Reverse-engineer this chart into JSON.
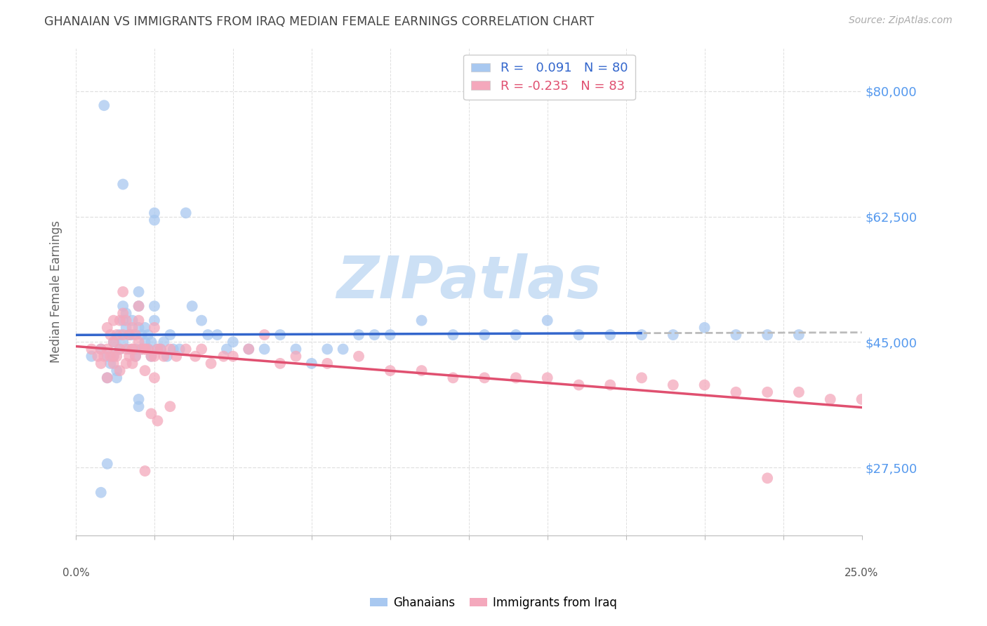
{
  "title": "GHANAIAN VS IMMIGRANTS FROM IRAQ MEDIAN FEMALE EARNINGS CORRELATION CHART",
  "source": "Source: ZipAtlas.com",
  "ylabel": "Median Female Earnings",
  "ytick_labels": [
    "$27,500",
    "$45,000",
    "$62,500",
    "$80,000"
  ],
  "ytick_values": [
    27500,
    45000,
    62500,
    80000
  ],
  "y_min": 18000,
  "y_max": 86000,
  "x_min": 0.0,
  "x_max": 0.25,
  "legend_blue_r": "0.091",
  "legend_blue_n": "80",
  "legend_pink_r": "-0.235",
  "legend_pink_n": "83",
  "legend_label_blue": "Ghanaians",
  "legend_label_pink": "Immigrants from Iraq",
  "blue_color": "#a8c8f0",
  "pink_color": "#f4a8bc",
  "line_blue_color": "#3366cc",
  "line_pink_color": "#e05070",
  "dash_color": "#bbbbbb",
  "watermark_text": "ZIPatlas",
  "watermark_color": "#cce0f5",
  "background_color": "#ffffff",
  "grid_color": "#e0e0e0",
  "title_color": "#444444",
  "source_color": "#aaaaaa",
  "axis_label_color": "#666666",
  "right_tick_color": "#5599ee",
  "blue_scatter_x": [
    0.005,
    0.008,
    0.009,
    0.01,
    0.01,
    0.011,
    0.012,
    0.012,
    0.013,
    0.013,
    0.014,
    0.014,
    0.015,
    0.015,
    0.015,
    0.016,
    0.016,
    0.017,
    0.017,
    0.018,
    0.018,
    0.019,
    0.019,
    0.02,
    0.02,
    0.02,
    0.021,
    0.021,
    0.022,
    0.022,
    0.023,
    0.023,
    0.024,
    0.024,
    0.025,
    0.025,
    0.026,
    0.027,
    0.028,
    0.029,
    0.03,
    0.031,
    0.033,
    0.035,
    0.037,
    0.04,
    0.042,
    0.045,
    0.048,
    0.05,
    0.055,
    0.06,
    0.065,
    0.07,
    0.075,
    0.08,
    0.085,
    0.09,
    0.095,
    0.1,
    0.11,
    0.12,
    0.13,
    0.14,
    0.15,
    0.16,
    0.17,
    0.18,
    0.19,
    0.2,
    0.21,
    0.22,
    0.23,
    0.015,
    0.02,
    0.02,
    0.025,
    0.025,
    0.01,
    0.008
  ],
  "blue_scatter_y": [
    43000,
    44000,
    78000,
    43000,
    40000,
    42000,
    45000,
    43000,
    41000,
    40000,
    46000,
    44000,
    50000,
    48000,
    45000,
    49000,
    47000,
    46000,
    44000,
    48000,
    46000,
    44000,
    43000,
    52000,
    50000,
    47000,
    46000,
    44000,
    47000,
    45000,
    46000,
    44000,
    45000,
    43000,
    50000,
    48000,
    44000,
    44000,
    45000,
    43000,
    46000,
    44000,
    44000,
    63000,
    50000,
    48000,
    46000,
    46000,
    44000,
    45000,
    44000,
    44000,
    46000,
    44000,
    42000,
    44000,
    44000,
    46000,
    46000,
    46000,
    48000,
    46000,
    46000,
    46000,
    48000,
    46000,
    46000,
    46000,
    46000,
    47000,
    46000,
    46000,
    46000,
    67000,
    37000,
    36000,
    63000,
    62000,
    28000,
    24000
  ],
  "pink_scatter_x": [
    0.005,
    0.007,
    0.008,
    0.009,
    0.01,
    0.01,
    0.011,
    0.011,
    0.012,
    0.012,
    0.013,
    0.013,
    0.014,
    0.014,
    0.015,
    0.015,
    0.016,
    0.016,
    0.017,
    0.017,
    0.018,
    0.018,
    0.019,
    0.019,
    0.02,
    0.02,
    0.021,
    0.022,
    0.023,
    0.024,
    0.025,
    0.026,
    0.027,
    0.028,
    0.03,
    0.032,
    0.035,
    0.038,
    0.04,
    0.043,
    0.047,
    0.05,
    0.055,
    0.06,
    0.065,
    0.07,
    0.08,
    0.09,
    0.1,
    0.11,
    0.12,
    0.13,
    0.14,
    0.15,
    0.16,
    0.17,
    0.18,
    0.19,
    0.2,
    0.21,
    0.22,
    0.23,
    0.24,
    0.25,
    0.015,
    0.018,
    0.02,
    0.022,
    0.025,
    0.008,
    0.01,
    0.012,
    0.014,
    0.016,
    0.012,
    0.018,
    0.022,
    0.025,
    0.022,
    0.024,
    0.026,
    0.03,
    0.22
  ],
  "pink_scatter_y": [
    44000,
    43000,
    44000,
    43000,
    47000,
    44000,
    46000,
    43000,
    48000,
    45000,
    46000,
    43000,
    48000,
    44000,
    49000,
    46000,
    48000,
    44000,
    46000,
    43000,
    47000,
    44000,
    46000,
    43000,
    48000,
    45000,
    44000,
    44000,
    44000,
    43000,
    47000,
    44000,
    44000,
    43000,
    44000,
    43000,
    44000,
    43000,
    44000,
    42000,
    43000,
    43000,
    44000,
    46000,
    42000,
    43000,
    42000,
    43000,
    41000,
    41000,
    40000,
    40000,
    40000,
    40000,
    39000,
    39000,
    40000,
    39000,
    39000,
    38000,
    38000,
    38000,
    37000,
    37000,
    52000,
    44000,
    50000,
    44000,
    43000,
    42000,
    40000,
    42000,
    41000,
    42000,
    43000,
    42000,
    41000,
    40000,
    27000,
    35000,
    34000,
    36000,
    26000
  ]
}
